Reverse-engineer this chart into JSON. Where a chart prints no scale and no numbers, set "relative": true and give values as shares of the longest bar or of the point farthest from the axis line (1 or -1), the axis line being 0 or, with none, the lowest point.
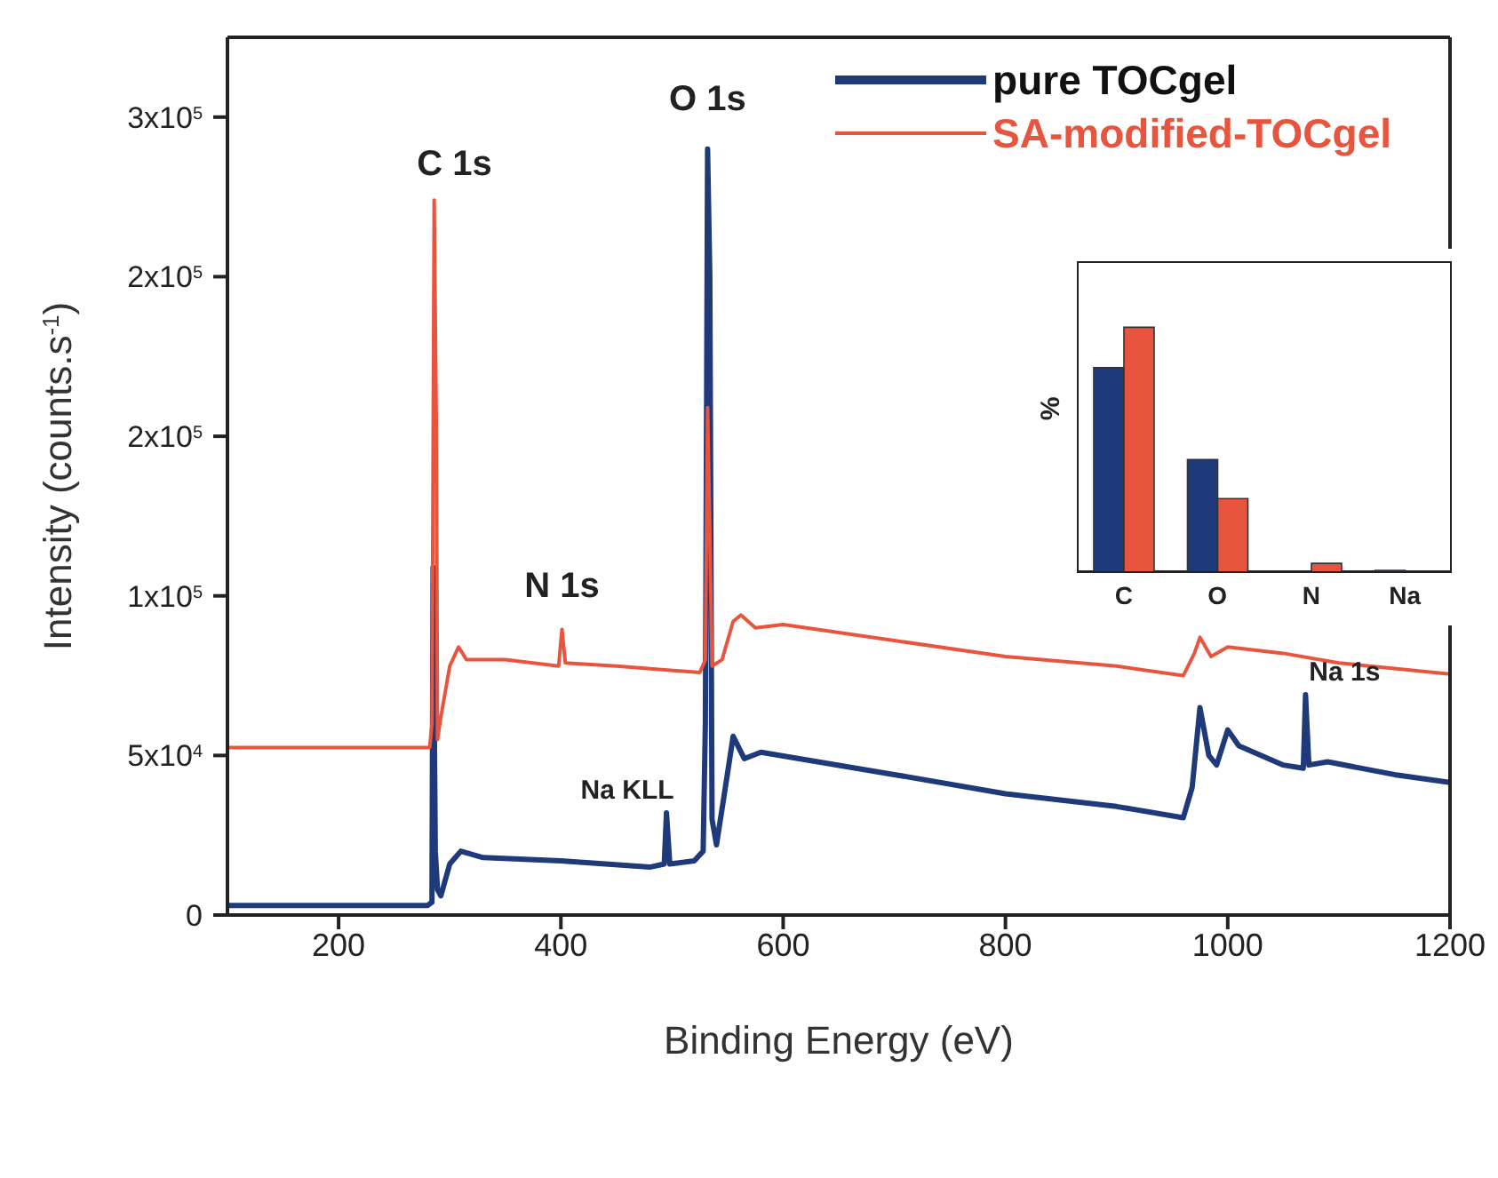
{
  "chart_data": [
    {
      "type": "line",
      "xlabel": "Binding Energy (eV)",
      "ylabel": "Intensity (counts.s$^{-1}$)",
      "xlim": [
        100,
        1200
      ],
      "xticks": [
        200,
        400,
        600,
        800,
        1000,
        1200
      ],
      "ylim": [
        0,
        275000
      ],
      "yticks": [
        0,
        {
          "value": 50000,
          "label": "5x10$^{4}$"
        },
        {
          "value": 100000,
          "label": "1x10$^{5}$"
        },
        {
          "value": 150000,
          "label": "2x10$^{5}$"
        },
        {
          "value": 200000,
          "label": "2x10$^{5}$"
        },
        {
          "value": 250000,
          "label": "3x10$^{5}$"
        }
      ],
      "legend": "top right",
      "marker": "none",
      "line_style": "solid",
      "series": [
        {
          "name": "pure TOCgel",
          "color": "#1f3a7a",
          "x": [
            100,
            280,
            284,
            285,
            287,
            289,
            292,
            300,
            310,
            330,
            400,
            480,
            493,
            495,
            498,
            520,
            528,
            530,
            532,
            534,
            536,
            540,
            548,
            555,
            565,
            580,
            700,
            800,
            900,
            960,
            968,
            975,
            983,
            990,
            1000,
            1010,
            1050,
            1068,
            1070,
            1073,
            1090,
            1150,
            1200
          ],
          "values": [
            3000,
            3000,
            4000,
            109000,
            20000,
            8000,
            6000,
            16000,
            20000,
            18000,
            17000,
            15000,
            16000,
            32000,
            16000,
            17000,
            20000,
            60000,
            240000,
            200000,
            30000,
            22000,
            40000,
            56000,
            49000,
            51000,
            44000,
            38000,
            34000,
            30500,
            40000,
            65000,
            50000,
            47000,
            58000,
            53000,
            47000,
            46000,
            69000,
            47000,
            48000,
            44000,
            41500
          ]
        },
        {
          "name": "SA-modified-TOCgel",
          "color": "#e8553e",
          "x": [
            100,
            282,
            284,
            286,
            288,
            289,
            292,
            300,
            308,
            315,
            350,
            398,
            401,
            404,
            450,
            525,
            530,
            532,
            534,
            536,
            545,
            555,
            562,
            575,
            600,
            700,
            800,
            900,
            960,
            970,
            975,
            985,
            1000,
            1050,
            1100,
            1200
          ],
          "values": [
            52500,
            52500,
            60000,
            224000,
            150000,
            55000,
            62000,
            78000,
            84000,
            80000,
            80000,
            78000,
            89500,
            79000,
            78000,
            76000,
            80000,
            159000,
            120000,
            78000,
            80000,
            92000,
            94000,
            90000,
            91000,
            86000,
            81000,
            78000,
            75000,
            82000,
            87000,
            81000,
            84000,
            82000,
            79000,
            75500
          ]
        }
      ],
      "annotations": [
        {
          "text": "C 1s",
          "x": 285,
          "y": 224000
        },
        {
          "text": "O 1s",
          "x": 532,
          "y": 240000
        },
        {
          "text": "N 1s",
          "x": 401,
          "y": 89500
        },
        {
          "text": "Na KLL",
          "x": 495,
          "y": 32000
        },
        {
          "text": "Na 1s",
          "x": 1070,
          "y": 69000
        }
      ]
    },
    {
      "type": "bar",
      "relative": true,
      "ylabel": "%",
      "categories": [
        "C",
        "O",
        "N",
        "Na"
      ],
      "series": [
        {
          "color": "#1f3a7a",
          "values": [
            0.835,
            0.46,
            0,
            0.007
          ]
        },
        {
          "color": "#e8553e",
          "values": [
            1,
            0.3,
            0.036,
            0
          ]
        }
      ]
    }
  ]
}
